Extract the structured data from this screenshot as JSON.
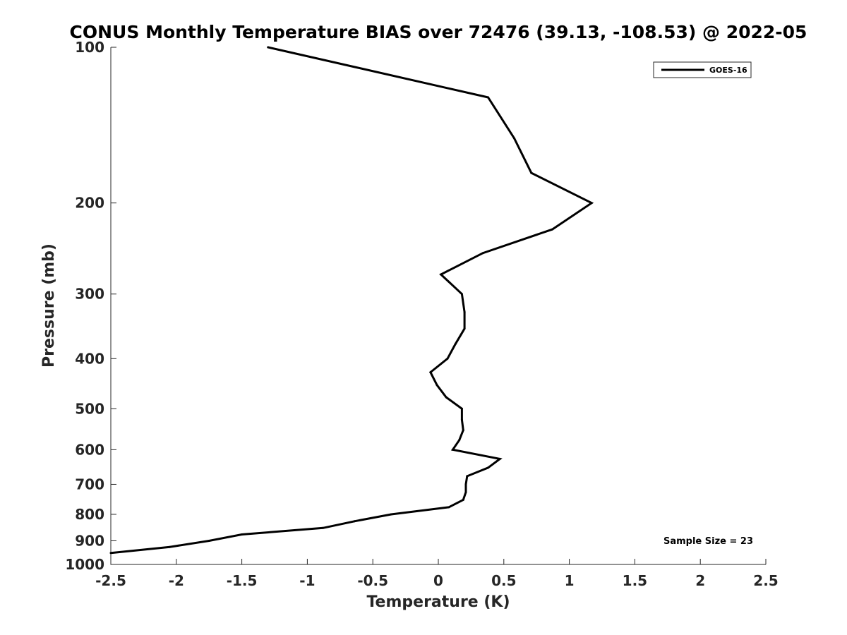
{
  "chart_data": {
    "type": "line",
    "title": "CONUS Monthly Temperature BIAS over 72476 (39.13, -108.53) @ 2022-05",
    "xlabel": "Temperature (K)",
    "ylabel": "Pressure (mb)",
    "xlim": [
      -2.5,
      2.5
    ],
    "ylim": [
      100,
      1000
    ],
    "y_scale": "log",
    "y_reversed": true,
    "x_ticks": [
      "-2.5",
      "-2",
      "-1.5",
      "-1",
      "-0.5",
      "0",
      "0.5",
      "1",
      "1.5",
      "2",
      "2.5"
    ],
    "y_ticks": [
      "100",
      "200",
      "300",
      "400",
      "500",
      "600",
      "700",
      "800",
      "900",
      "1000"
    ],
    "grid": false,
    "legend_position": "top-right",
    "annotation": "Sample Size = 23",
    "series": [
      {
        "name": "GOES-16",
        "color": "#000000",
        "points": [
          {
            "x": -1.3,
            "y": 100
          },
          {
            "x": 0.38,
            "y": 125
          },
          {
            "x": 0.58,
            "y": 150
          },
          {
            "x": 0.71,
            "y": 175
          },
          {
            "x": 1.17,
            "y": 200
          },
          {
            "x": 0.87,
            "y": 225
          },
          {
            "x": 0.34,
            "y": 250
          },
          {
            "x": 0.02,
            "y": 275
          },
          {
            "x": 0.18,
            "y": 300
          },
          {
            "x": 0.2,
            "y": 325
          },
          {
            "x": 0.2,
            "y": 350
          },
          {
            "x": 0.13,
            "y": 375
          },
          {
            "x": 0.07,
            "y": 400
          },
          {
            "x": -0.06,
            "y": 425
          },
          {
            "x": -0.01,
            "y": 450
          },
          {
            "x": 0.06,
            "y": 475
          },
          {
            "x": 0.18,
            "y": 500
          },
          {
            "x": 0.18,
            "y": 525
          },
          {
            "x": 0.19,
            "y": 550
          },
          {
            "x": 0.16,
            "y": 575
          },
          {
            "x": 0.11,
            "y": 600
          },
          {
            "x": 0.47,
            "y": 625
          },
          {
            "x": 0.38,
            "y": 650
          },
          {
            "x": 0.22,
            "y": 675
          },
          {
            "x": 0.21,
            "y": 700
          },
          {
            "x": 0.21,
            "y": 725
          },
          {
            "x": 0.19,
            "y": 750
          },
          {
            "x": 0.08,
            "y": 775
          },
          {
            "x": -0.36,
            "y": 800
          },
          {
            "x": -0.64,
            "y": 825
          },
          {
            "x": -0.88,
            "y": 850
          },
          {
            "x": -1.5,
            "y": 875
          },
          {
            "x": -1.75,
            "y": 900
          },
          {
            "x": -2.05,
            "y": 925
          },
          {
            "x": -2.5,
            "y": 950
          }
        ]
      }
    ]
  }
}
